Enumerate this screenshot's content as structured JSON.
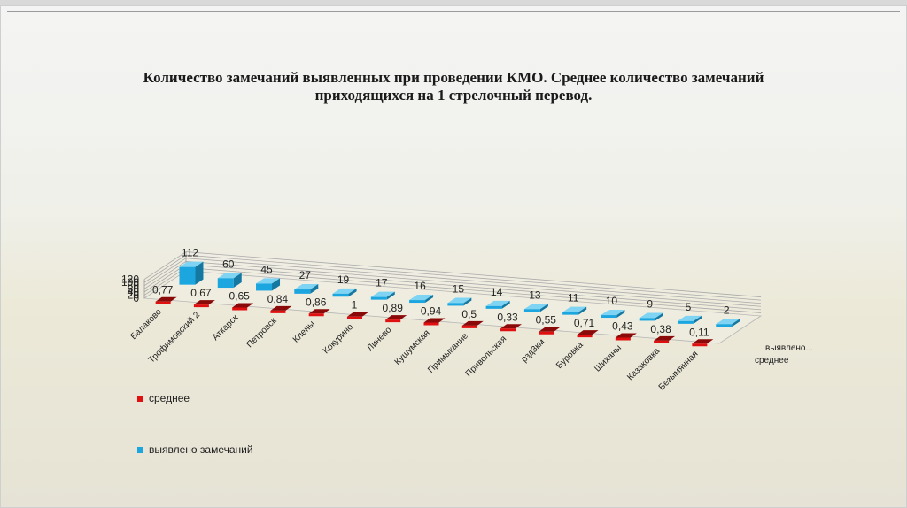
{
  "chart_data": {
    "type": "bar",
    "title": "Количество замечаний выявленных при проведении КМО. Среднее количество замечаний приходящихся на 1 стрелочный перевод.",
    "categories": [
      "Балаково",
      "Трофимовский 2",
      "Аткарск",
      "Петровск",
      "Клены",
      "Кокурино",
      "Линево",
      "Кушумская",
      "Примыкание",
      "Привольская",
      "рзд3км",
      "Буровка",
      "Шиханы",
      "Казаковка",
      "Безымянная"
    ],
    "series": [
      {
        "name": "выявлено замечаний",
        "depth_label": "выявлено...",
        "color": "#1ca6e0",
        "values": [
          112,
          60,
          45,
          27,
          19,
          17,
          16,
          15,
          14,
          13,
          11,
          10,
          9,
          5,
          2
        ],
        "labels": [
          "112",
          "60",
          "45",
          "27",
          "19",
          "17",
          "16",
          "15",
          "14",
          "13",
          "11",
          "10",
          "9",
          "5",
          "2"
        ]
      },
      {
        "name": "среднее",
        "depth_label": "среднее",
        "color": "#e01010",
        "values": [
          0.77,
          0.67,
          0.65,
          0.84,
          0.86,
          1,
          0.89,
          0.94,
          0.5,
          0.33,
          0.55,
          0.71,
          0.43,
          0.38,
          0.11
        ],
        "labels": [
          "0,77",
          "0,67",
          "0,65",
          "0,84",
          "0,86",
          "1",
          "0,89",
          "0,94",
          "0,5",
          "0,33",
          "0,55",
          "0,71",
          "0,43",
          "0,38",
          "0,11"
        ]
      }
    ],
    "y_ticks": [
      "0",
      "20",
      "40",
      "60",
      "80",
      "100",
      "120"
    ],
    "ylim": [
      0,
      120
    ],
    "grid": true,
    "legend_position": "left"
  }
}
